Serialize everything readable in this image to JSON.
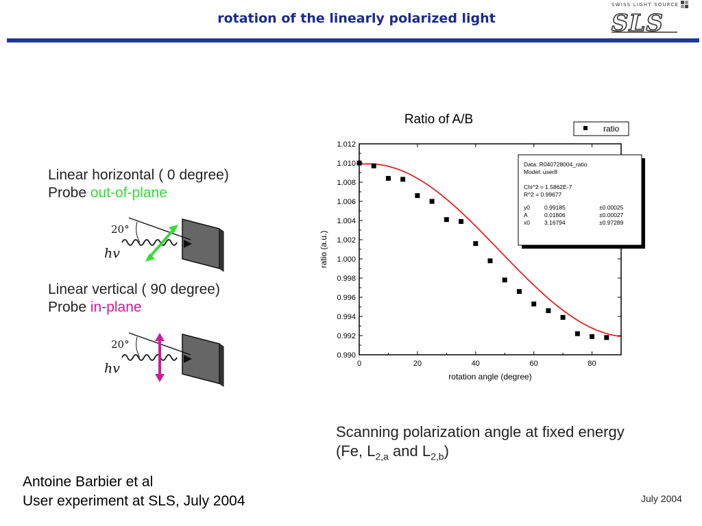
{
  "header": {
    "title": "rotation of the linearly polarized light",
    "logo_caption": "SWISS LIGHT SOURCE",
    "logo_text": "SLS"
  },
  "left_panel": {
    "horizontal": {
      "line1": "Linear horizontal ( 0 degree)",
      "prefix": "Probe ",
      "highlight": "out-of-plane",
      "color": "#33dd33"
    },
    "vertical": {
      "line1": "Linear vertical ( 90 degree)",
      "prefix": "Probe ",
      "highlight": "in-plane",
      "color": "#cc1b9e"
    },
    "diagram": {
      "angle_label": "20°",
      "photon_label": "hv"
    }
  },
  "chart_data": {
    "type": "scatter",
    "title": "Ratio of A/B",
    "xlabel": "rotation angle (degree)",
    "ylabel": "ratio (a.u.)",
    "xlim": [
      0,
      90
    ],
    "ylim": [
      0.99,
      1.012
    ],
    "xticks": [
      0,
      20,
      40,
      60,
      80
    ],
    "yticks": [
      0.99,
      0.992,
      0.994,
      0.996,
      0.998,
      1.0,
      1.002,
      1.004,
      1.006,
      1.008,
      1.01,
      1.012
    ],
    "ytick_labels": [
      "0.990",
      "0.992",
      "0.994",
      "0.996",
      "0.998",
      "1.000",
      "1.002",
      "1.004",
      "1.006",
      "1.008",
      "1.010",
      "1.012"
    ],
    "legend": {
      "label": "ratio",
      "placement": "top-right"
    },
    "series": [
      {
        "name": "ratio",
        "x": [
          0,
          5,
          10,
          15,
          20,
          25,
          30,
          35,
          40,
          45,
          50,
          55,
          60,
          65,
          70,
          75,
          80,
          85
        ],
        "y": [
          1.01,
          1.0097,
          1.0084,
          1.0083,
          1.0066,
          1.006,
          1.0041,
          1.0039,
          1.0016,
          0.9998,
          0.9978,
          0.9966,
          0.9953,
          0.9946,
          0.9939,
          0.9922,
          0.9919,
          0.9918
        ]
      }
    ],
    "fit": {
      "color": "#e32222",
      "model": {
        "y0": 0.99185,
        "A": 0.01806,
        "x0": 3.16794
      }
    },
    "fit_box": {
      "lines": [
        "Data: R040728004_ratio",
        "Model: user8",
        "",
        "Chi^2  = 1.5862E-7",
        "R^2    = 0.99677"
      ],
      "params": [
        [
          "y0",
          "0.99185",
          "±0.00025"
        ],
        [
          "A",
          "0.01806",
          "±0.00027"
        ],
        [
          "x0",
          "3.16794",
          "±0.97289"
        ]
      ]
    }
  },
  "caption": {
    "line1": "Scanning polarization angle at fixed energy",
    "line2_prefix": "(Fe, L",
    "sub1": "2,a",
    "mid": " and L",
    "sub2": "2,b",
    "suffix": ")"
  },
  "credit": {
    "line1": "Antoine Barbier et al",
    "line2": "User experiment at SLS, July 2004"
  },
  "date": "July 2004"
}
